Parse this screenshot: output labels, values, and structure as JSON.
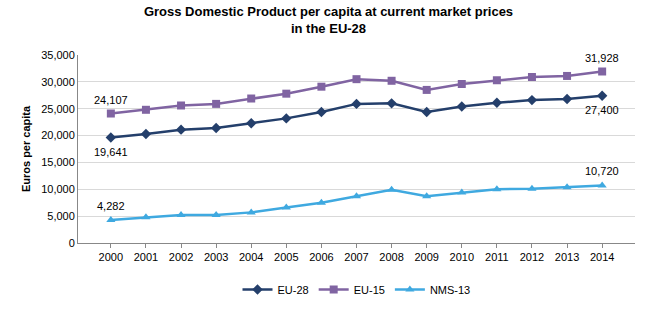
{
  "chart_data": {
    "type": "line",
    "title": "Gross Domestic Product per capita at current market prices\nin the EU-28",
    "y_label": "Euros per capita",
    "categories": [
      "2000",
      "2001",
      "2002",
      "2003",
      "2004",
      "2005",
      "2006",
      "2007",
      "2008",
      "2009",
      "2010",
      "2011",
      "2012",
      "2013",
      "2014"
    ],
    "series": [
      {
        "name": "EU-28",
        "color": "#243f6b",
        "marker": "diamond",
        "line_style": "solid",
        "values": [
          19641,
          20300,
          21100,
          21400,
          22300,
          23200,
          24400,
          25900,
          26000,
          24400,
          25400,
          26100,
          26600,
          26800,
          27400
        ],
        "value_labels": [
          "19,641",
          null,
          null,
          null,
          null,
          null,
          null,
          null,
          null,
          null,
          null,
          null,
          null,
          null,
          "27,400"
        ]
      },
      {
        "name": "EU-15",
        "color": "#8064a2",
        "marker": "square",
        "line_style": "solid",
        "values": [
          24107,
          24800,
          25600,
          25900,
          26900,
          27800,
          29100,
          30500,
          30200,
          28500,
          29600,
          30300,
          30900,
          31100,
          31928
        ],
        "value_labels": [
          "24,107",
          null,
          null,
          null,
          null,
          null,
          null,
          null,
          null,
          null,
          null,
          null,
          null,
          null,
          "31,928"
        ]
      },
      {
        "name": "NMS-13",
        "color": "#3fa9e0",
        "marker": "triangle-up",
        "line_style": "solid",
        "values": [
          4282,
          4800,
          5200,
          5200,
          5700,
          6600,
          7500,
          8700,
          9900,
          8700,
          9400,
          10000,
          10100,
          10400,
          10720
        ],
        "value_labels": [
          "4,282",
          null,
          null,
          null,
          null,
          null,
          null,
          null,
          null,
          null,
          null,
          null,
          null,
          null,
          "10,720"
        ]
      }
    ],
    "ylim": [
      0,
      35000
    ],
    "yticks": [
      0,
      {
        "value": 5000,
        "label": "5,000"
      },
      {
        "value": 10000,
        "label": "10,000"
      },
      {
        "value": 15000,
        "label": "15,000"
      },
      {
        "value": 20000,
        "label": "20,000"
      },
      {
        "value": 25000,
        "label": "25,000"
      },
      {
        "value": 30000,
        "label": "30,000"
      },
      {
        "value": 35000,
        "label": "35,000"
      }
    ],
    "grid": true,
    "legend": "bottom"
  }
}
